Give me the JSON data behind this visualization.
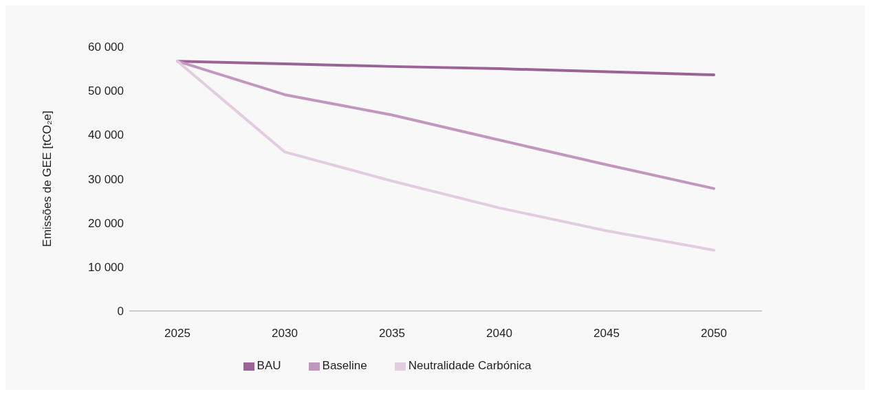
{
  "chart_data": {
    "type": "line",
    "ylabel": "Emissões de GEE [tCO₂e]",
    "categories": [
      "2025",
      "2030",
      "2035",
      "2040",
      "2045",
      "2050"
    ],
    "series": [
      {
        "name": "BAU",
        "color": "#9b6496",
        "values": [
          56700,
          56100,
          55500,
          55000,
          54300,
          53600
        ]
      },
      {
        "name": "Baseline",
        "color": "#c197bd",
        "values": [
          56700,
          49100,
          44500,
          38800,
          33200,
          27800
        ]
      },
      {
        "name": "Neutralidade Carbónica",
        "color": "#e2cde0",
        "values": [
          56700,
          36100,
          29500,
          23400,
          18200,
          13800
        ]
      }
    ],
    "ylim": [
      0,
      60000
    ],
    "yticks": [
      {
        "value": 0,
        "label": "0"
      },
      {
        "value": 10000,
        "label": "10 000"
      },
      {
        "value": 20000,
        "label": "20 000"
      },
      {
        "value": 30000,
        "label": "30 000"
      },
      {
        "value": 40000,
        "label": "40 000"
      },
      {
        "value": 50000,
        "label": "50 000"
      },
      {
        "value": 60000,
        "label": "60 000"
      }
    ],
    "grid": false,
    "legend": "bottom"
  }
}
